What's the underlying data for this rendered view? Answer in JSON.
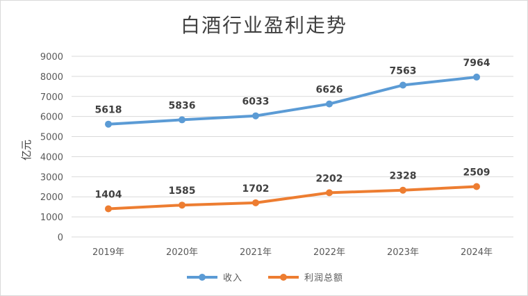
{
  "chart_data": {
    "type": "line",
    "title": "白酒行业盈利走势",
    "ylabel": "亿元",
    "xlabel": "",
    "ylim": [
      0,
      9000
    ],
    "yticks": [
      0,
      1000,
      2000,
      3000,
      4000,
      5000,
      6000,
      7000,
      8000,
      9000
    ],
    "categories": [
      "2019年",
      "2020年",
      "2021年",
      "2022年",
      "2023年",
      "2024年"
    ],
    "grid": true,
    "legend_position": "bottom",
    "series": [
      {
        "name": "收入",
        "color": "#5b9bd5",
        "values": [
          5618,
          5836,
          6033,
          6626,
          7563,
          7964
        ]
      },
      {
        "name": "利润总额",
        "color": "#ed7d31",
        "values": [
          1404,
          1585,
          1702,
          2202,
          2328,
          2509
        ]
      }
    ]
  }
}
